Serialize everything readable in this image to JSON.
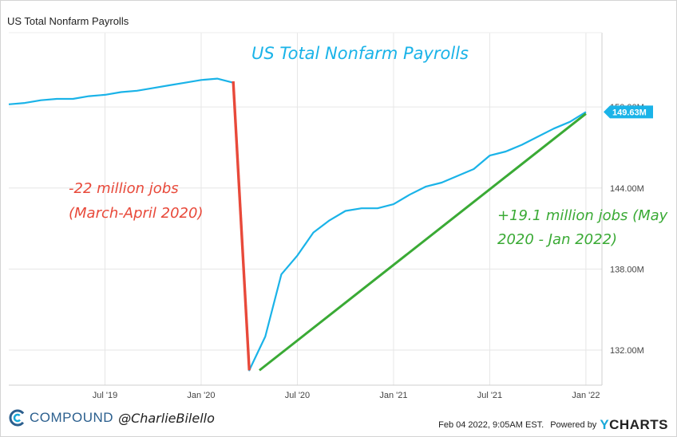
{
  "header": {
    "title": "US Total Nonfarm Payrolls"
  },
  "chart_data": {
    "type": "line",
    "title": "US Total Nonfarm Payrolls",
    "xlabel": "",
    "ylabel": "",
    "x_ticks": [
      "Jul '19",
      "Jan '20",
      "Jul '20",
      "Jan '21",
      "Jul '21",
      "Jan '22"
    ],
    "y_ticks": [
      "132.00M",
      "138.00M",
      "144.00M",
      "150.00M"
    ],
    "ylim": [
      129.4,
      155.5
    ],
    "xlim": [
      "2019-01",
      "2022-02"
    ],
    "grid": true,
    "series": [
      {
        "color": "#1ab3e8",
        "x": [
          "2019-01",
          "2019-02",
          "2019-03",
          "2019-04",
          "2019-05",
          "2019-06",
          "2019-07",
          "2019-08",
          "2019-09",
          "2019-10",
          "2019-11",
          "2019-12",
          "2020-01",
          "2020-02",
          "2020-03",
          "2020-04",
          "2020-05",
          "2020-06",
          "2020-07",
          "2020-08",
          "2020-09",
          "2020-10",
          "2020-11",
          "2020-12",
          "2021-01",
          "2021-02",
          "2021-03",
          "2021-04",
          "2021-05",
          "2021-06",
          "2021-07",
          "2021-08",
          "2021-09",
          "2021-10",
          "2021-11",
          "2021-12",
          "2022-01"
        ],
        "values": [
          150.2,
          150.3,
          150.5,
          150.6,
          150.6,
          150.8,
          150.9,
          151.1,
          151.2,
          151.4,
          151.6,
          151.8,
          152.0,
          152.1,
          151.8,
          130.5,
          133.0,
          137.6,
          139.0,
          140.7,
          141.6,
          142.3,
          142.5,
          142.5,
          142.8,
          143.5,
          144.1,
          144.4,
          144.9,
          145.4,
          146.4,
          146.7,
          147.2,
          147.8,
          148.4,
          148.9,
          149.63
        ]
      }
    ],
    "last_value_label": "149.63M",
    "annotations": [
      {
        "text_line1": "-22 million jobs",
        "text_line2": "(March-April 2020)",
        "color": "#e8493a"
      },
      {
        "text_line1": "+19.1 million jobs (May",
        "text_line2": "2020 - Jan 2022)",
        "color": "#3aaa35"
      }
    ],
    "annotation_lines": [
      {
        "color": "#e8493a",
        "from_x": "2020-03",
        "from_y": 151.9,
        "to_x": "2020-04",
        "to_y": 130.5
      },
      {
        "color": "#3aaa35",
        "from_x": "2020-04-20",
        "from_y": 130.5,
        "to_x": "2022-01",
        "to_y": 149.5
      }
    ],
    "colors": {
      "line": "#1ab3e8",
      "grid": "#e6e6e6",
      "label_bg": "#1ab3e8",
      "title": "#1ab3e8"
    }
  },
  "footer": {
    "brand": "COMPOUND",
    "handle": "@CharlieBilello",
    "date": "Feb 04 2022, 9:05AM EST.",
    "powered": "Powered by",
    "ycharts_y": "Y",
    "ycharts_rest": "CHARTS"
  }
}
